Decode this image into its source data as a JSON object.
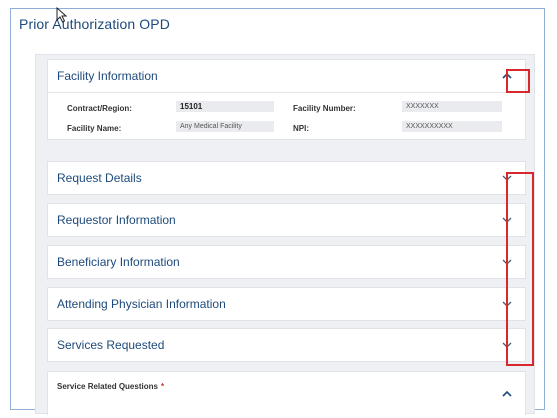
{
  "page": {
    "title": "Prior Authorization OPD"
  },
  "facility": {
    "title": "Facility Information",
    "fields": {
      "contract_region": {
        "label": "Contract/Region:",
        "value": "15101"
      },
      "facility_number": {
        "label": "Facility Number:",
        "value": "XXXXXXX"
      },
      "facility_name": {
        "label": "Facility Name:",
        "value": "Any Medical Facility"
      },
      "npi": {
        "label": "NPI:",
        "value": "XXXXXXXXXX"
      }
    }
  },
  "sections": [
    {
      "title": "Request Details"
    },
    {
      "title": "Requestor Information"
    },
    {
      "title": "Beneficiary Information"
    },
    {
      "title": "Attending Physician Information"
    },
    {
      "title": "Services Requested"
    }
  ],
  "service_questions": {
    "title": "Service Related Questions",
    "required_mark": "*"
  },
  "colors": {
    "accent": "#1e4a7b",
    "highlight": "#d9272e",
    "chevron": "#4a5a6a"
  }
}
